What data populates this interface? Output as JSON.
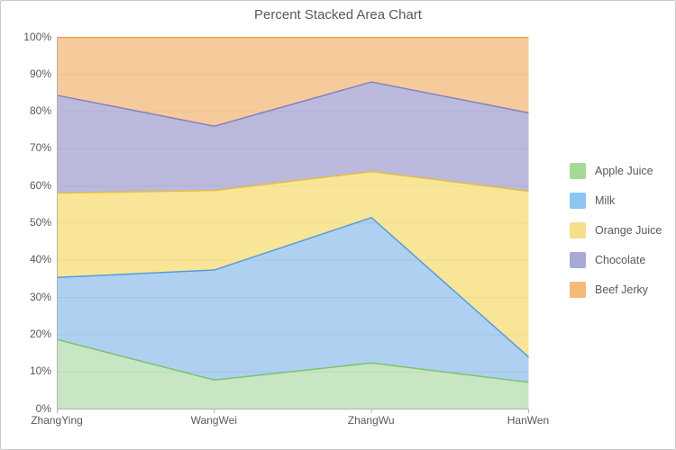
{
  "title": "Percent Stacked Area Chart",
  "style": {
    "title_color": "#595959",
    "label_color": "#595959",
    "axis_line_color": "#b3b3b3",
    "gridline_color": "#eaeaea",
    "window_border_color": "#c9c9c9",
    "background": "#ffffff"
  },
  "chart_data": {
    "type": "area",
    "stacking": "percent",
    "title": "Percent Stacked Area Chart",
    "categories": [
      "ZhangYing",
      "WangWei",
      "ZhangWu",
      "HanWen"
    ],
    "series": [
      {
        "name": "Apple Juice",
        "values": [
          18.7,
          7.8,
          12.4,
          7.2
        ],
        "stack_top_percent": [
          18.7,
          7.8,
          12.4,
          7.2
        ],
        "stroke": "#7cc36f",
        "fill": "rgba(124,195,111,0.42)",
        "swatch": "#a6d89a"
      },
      {
        "name": "Milk",
        "values": [
          16.7,
          29.6,
          39.1,
          6.8
        ],
        "stack_top_percent": [
          35.4,
          37.4,
          51.5,
          14.0
        ],
        "stroke": "#569be0",
        "fill": "rgba(86,155,224,0.47)",
        "swatch": "#8cc5ef"
      },
      {
        "name": "Orange Juice",
        "values": [
          22.7,
          21.4,
          12.4,
          44.6
        ],
        "stack_top_percent": [
          58.1,
          58.8,
          63.9,
          58.6
        ],
        "stroke": "#e4bd44",
        "fill": "rgba(244,211,81,0.6)",
        "swatch": "#f7dd8c"
      },
      {
        "name": "Chocolate",
        "values": [
          26.3,
          17.3,
          24.1,
          21.1
        ],
        "stack_top_percent": [
          84.4,
          76.1,
          88.0,
          79.7
        ],
        "stroke": "#8480c0",
        "fill": "rgba(132,128,192,0.55)",
        "swatch": "#a9a9d6"
      },
      {
        "name": "Beef Jerky",
        "values": [
          15.6,
          23.9,
          12.0,
          20.3
        ],
        "stack_top_percent": [
          100,
          100,
          100,
          100
        ],
        "stroke": "#ed9c40",
        "fill": "rgba(237,156,64,0.52)",
        "swatch": "#f4ba77"
      }
    ],
    "y_ticks": [
      "0%",
      "10%",
      "20%",
      "30%",
      "40%",
      "50%",
      "60%",
      "70%",
      "80%",
      "90%",
      "100%"
    ],
    "ylim": [
      0,
      100
    ],
    "grid": true,
    "legend_position": "right"
  }
}
